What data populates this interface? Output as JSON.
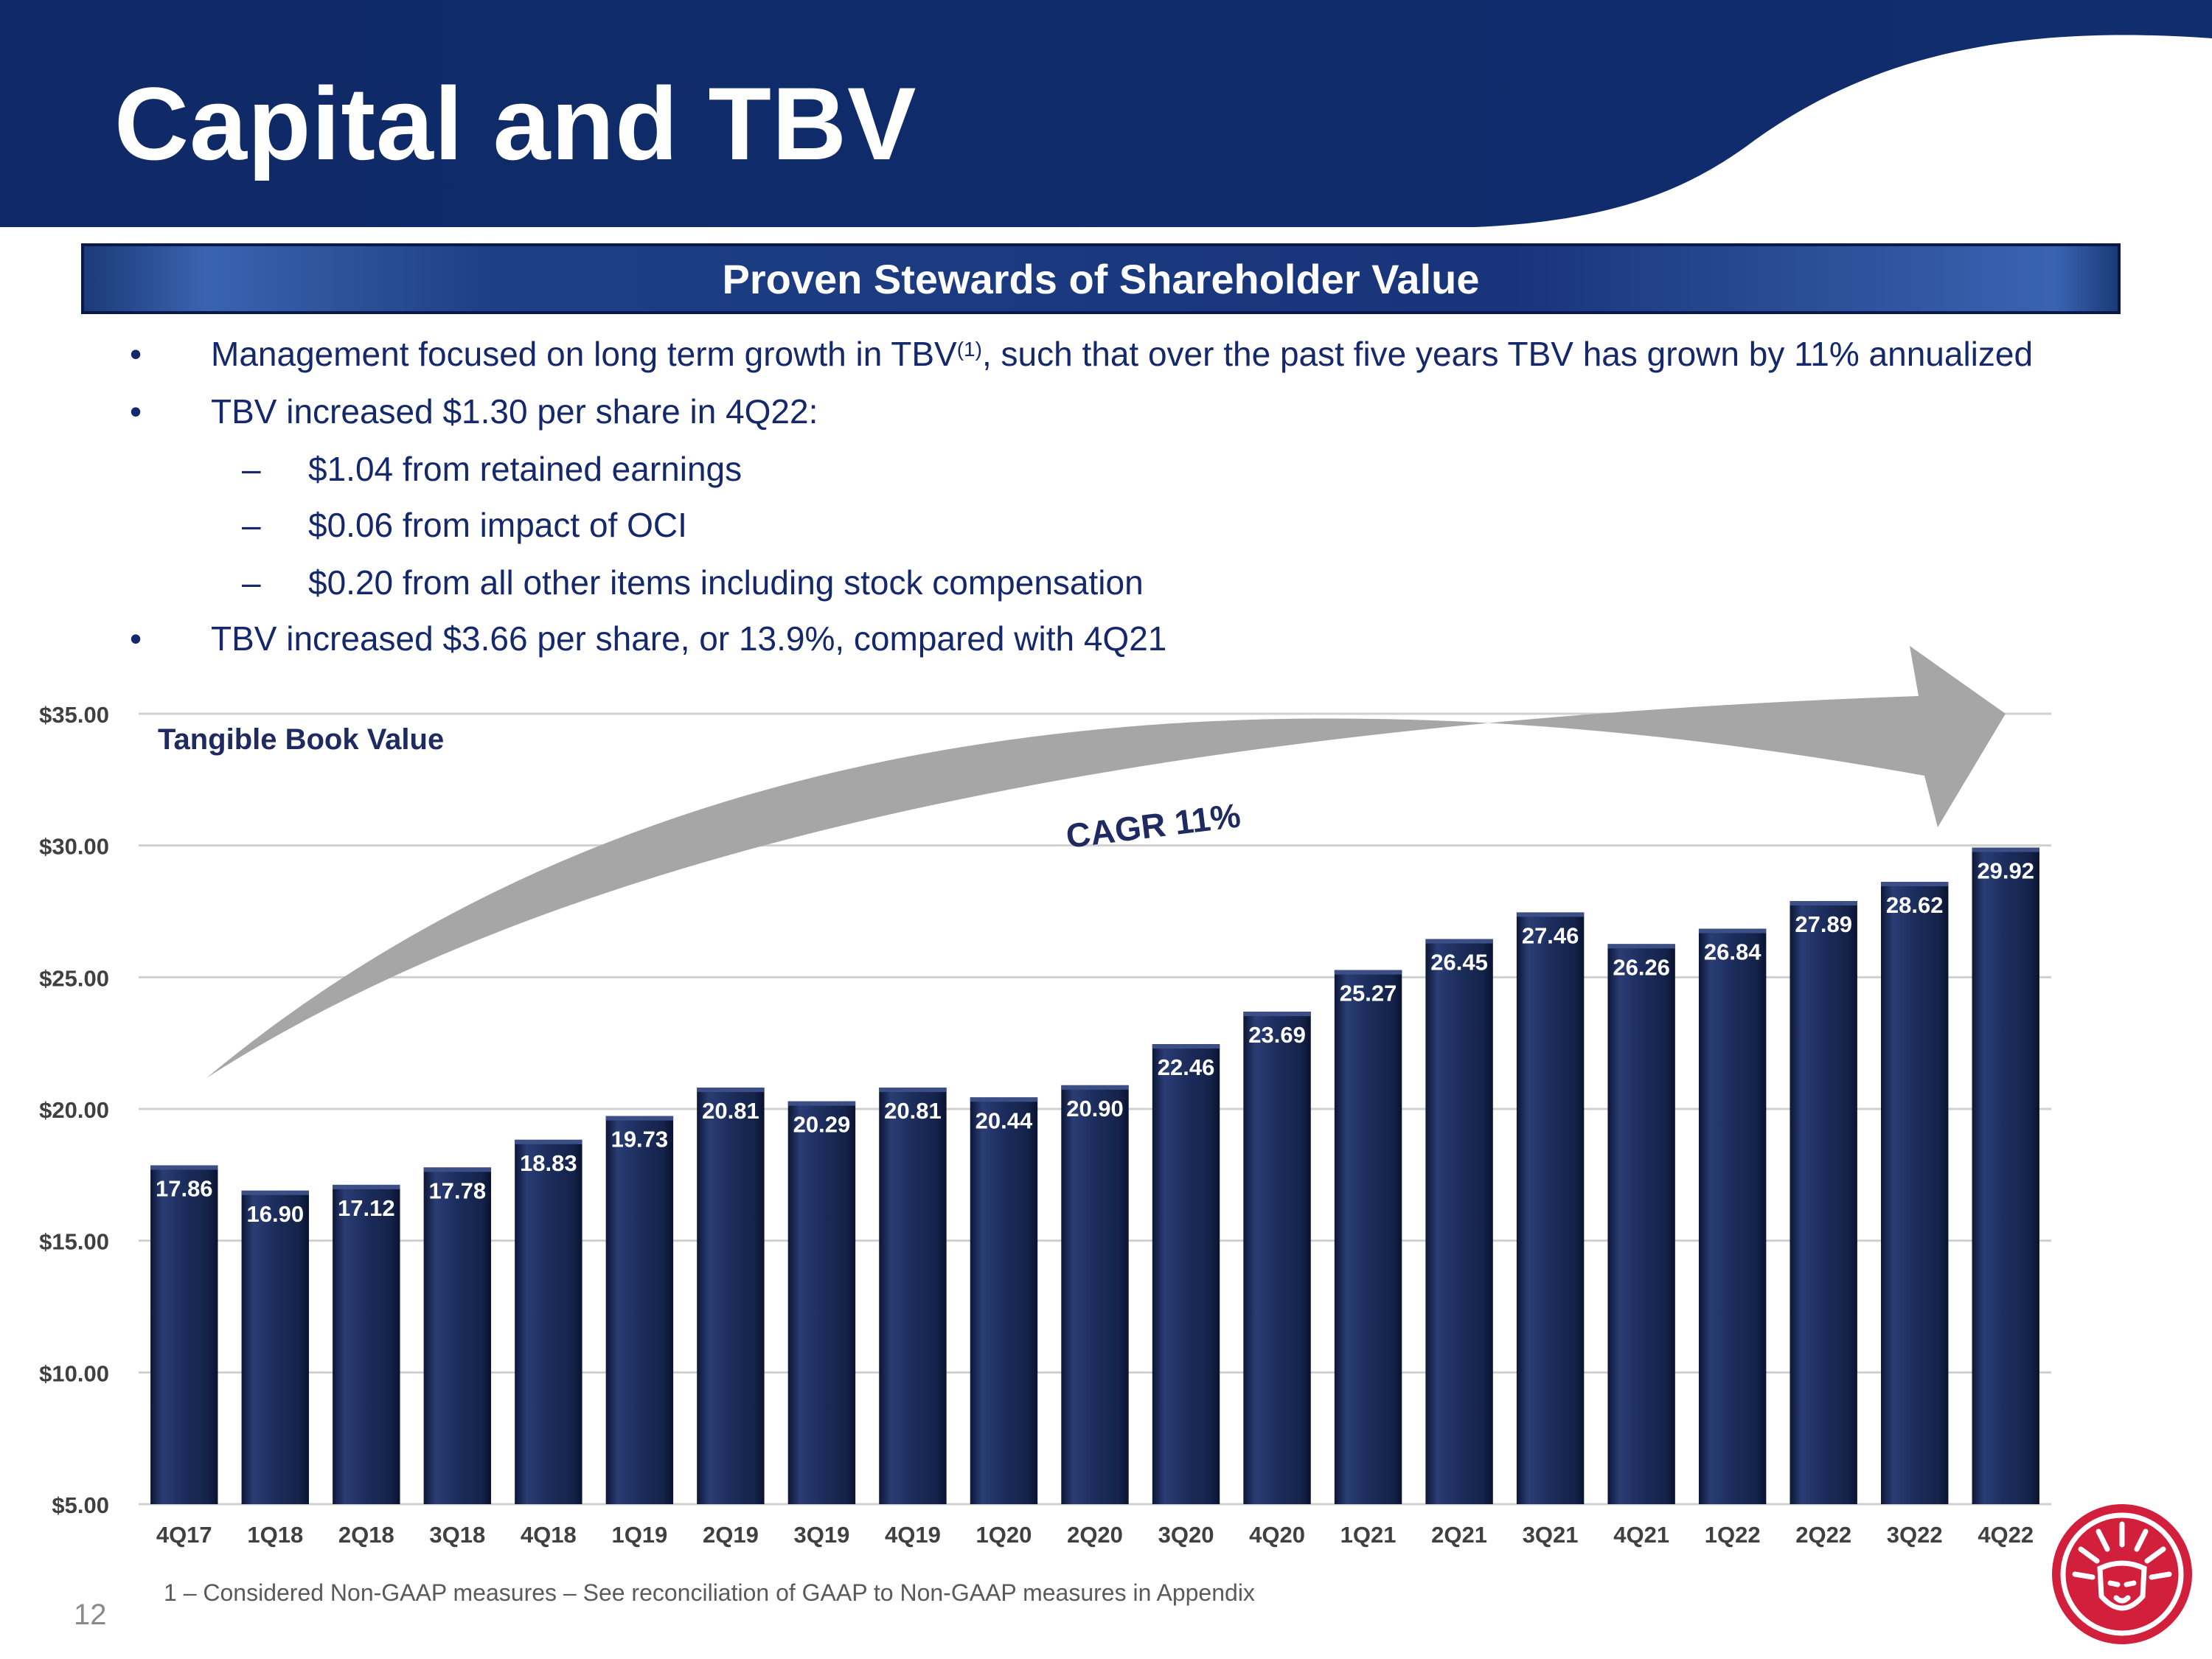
{
  "slide": {
    "title": "Capital and TBV",
    "banner": "Proven Stewards of Shareholder Value",
    "page_number": "12",
    "footnote": "1 – Considered Non-GAAP measures – See reconciliation of GAAP to Non-GAAP measures in Appendix"
  },
  "bullets": [
    {
      "text_before": "Management focused on long term growth in TBV",
      "sup": "(1)",
      "text_after": ", such that over the past five years TBV has grown by 11% annualized"
    },
    {
      "text": "TBV increased $1.30 per share in 4Q22:"
    },
    {
      "text": "$1.04 from retained earnings"
    },
    {
      "text": "$0.06 from impact of OCI"
    },
    {
      "text": "$0.20 from all other items including stock compensation"
    },
    {
      "text": "TBV increased $3.66 per share, or 13.9%, compared with 4Q21"
    }
  ],
  "bullet_glyph": "•",
  "dash_glyph": "–",
  "colors": {
    "navy": "#14286b",
    "bar": "#1c2d5c",
    "arrow": "#a6a6a6",
    "brand_red": "#d21f3c"
  },
  "chart_data": {
    "type": "bar",
    "title": "Tangible Book Value",
    "annotation": "CAGR 11%",
    "categories": [
      "4Q17",
      "1Q18",
      "2Q18",
      "3Q18",
      "4Q18",
      "1Q19",
      "2Q19",
      "3Q19",
      "4Q19",
      "1Q20",
      "2Q20",
      "3Q20",
      "4Q20",
      "1Q21",
      "2Q21",
      "3Q21",
      "4Q21",
      "1Q22",
      "2Q22",
      "3Q22",
      "4Q22"
    ],
    "values": [
      17.86,
      16.9,
      17.12,
      17.78,
      18.83,
      19.73,
      20.81,
      20.29,
      20.81,
      20.44,
      20.9,
      22.46,
      23.69,
      25.27,
      26.45,
      27.46,
      26.26,
      26.84,
      27.89,
      28.62,
      29.92
    ],
    "value_labels": [
      "17.86",
      "16.90",
      "17.12",
      "17.78",
      "18.83",
      "19.73",
      "20.81",
      "20.29",
      "20.81",
      "20.44",
      "20.90",
      "22.46",
      "23.69",
      "25.27",
      "26.45",
      "27.46",
      "26.26",
      "26.84",
      "27.89",
      "28.62",
      "29.92"
    ],
    "ylim": [
      5,
      35
    ],
    "yticks": [
      5,
      10,
      15,
      20,
      25,
      30,
      35
    ],
    "ytick_labels": [
      "$5.00",
      "$10.00",
      "$15.00",
      "$20.00",
      "$25.00",
      "$30.00",
      "$35.00"
    ],
    "xlabel": "",
    "ylabel": "",
    "grid": true
  }
}
